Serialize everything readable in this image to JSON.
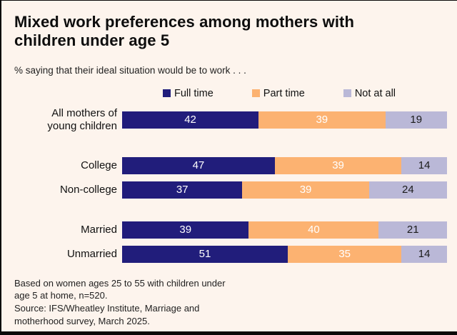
{
  "title": "Mixed work preferences among mothers with\nchildren under age 5",
  "subtitle": "% saying that their ideal situation would be to work . . .",
  "legend": [
    {
      "label": "Full time",
      "color": "#211d7b"
    },
    {
      "label": "Part time",
      "color": "#fcb271"
    },
    {
      "label": "Not at all",
      "color": "#bab8d7"
    }
  ],
  "chart_data": {
    "type": "bar",
    "orientation": "horizontal",
    "stacked": true,
    "unit": "percent",
    "xlim": [
      0,
      100
    ],
    "grid": false,
    "legend_position": "top",
    "series_names": [
      "Full time",
      "Part time",
      "Not at all"
    ],
    "series_colors": [
      "#211d7b",
      "#fcb271",
      "#bab8d7"
    ],
    "value_label_colors": [
      "#ffffff",
      "#ffffff",
      "#1b1b1b"
    ],
    "rows": [
      {
        "label": "All mothers of\nyoung children",
        "group": "all",
        "values": [
          42,
          39,
          19
        ]
      },
      {
        "label": "College",
        "group": "education",
        "values": [
          47,
          39,
          14
        ]
      },
      {
        "label": "Non-college",
        "group": "education",
        "values": [
          37,
          39,
          24
        ]
      },
      {
        "label": "Married",
        "group": "marital",
        "values": [
          39,
          40,
          21
        ]
      },
      {
        "label": "Unmarried",
        "group": "marital",
        "values": [
          51,
          35,
          14
        ]
      }
    ]
  },
  "footer": {
    "basis": "Based on women ages 25 to 55 with children under\nage 5 at home, n=520.",
    "source": "Source: IFS/Wheatley Institute, Marriage and\nmotherhood survey, March 2025."
  },
  "colors": {
    "background": "#fdf4ed",
    "frame_border": "#0a0a0a",
    "full_time": "#211d7b",
    "part_time": "#fcb271",
    "not_at_all": "#bab8d7",
    "title_text": "#0d0d0d"
  }
}
